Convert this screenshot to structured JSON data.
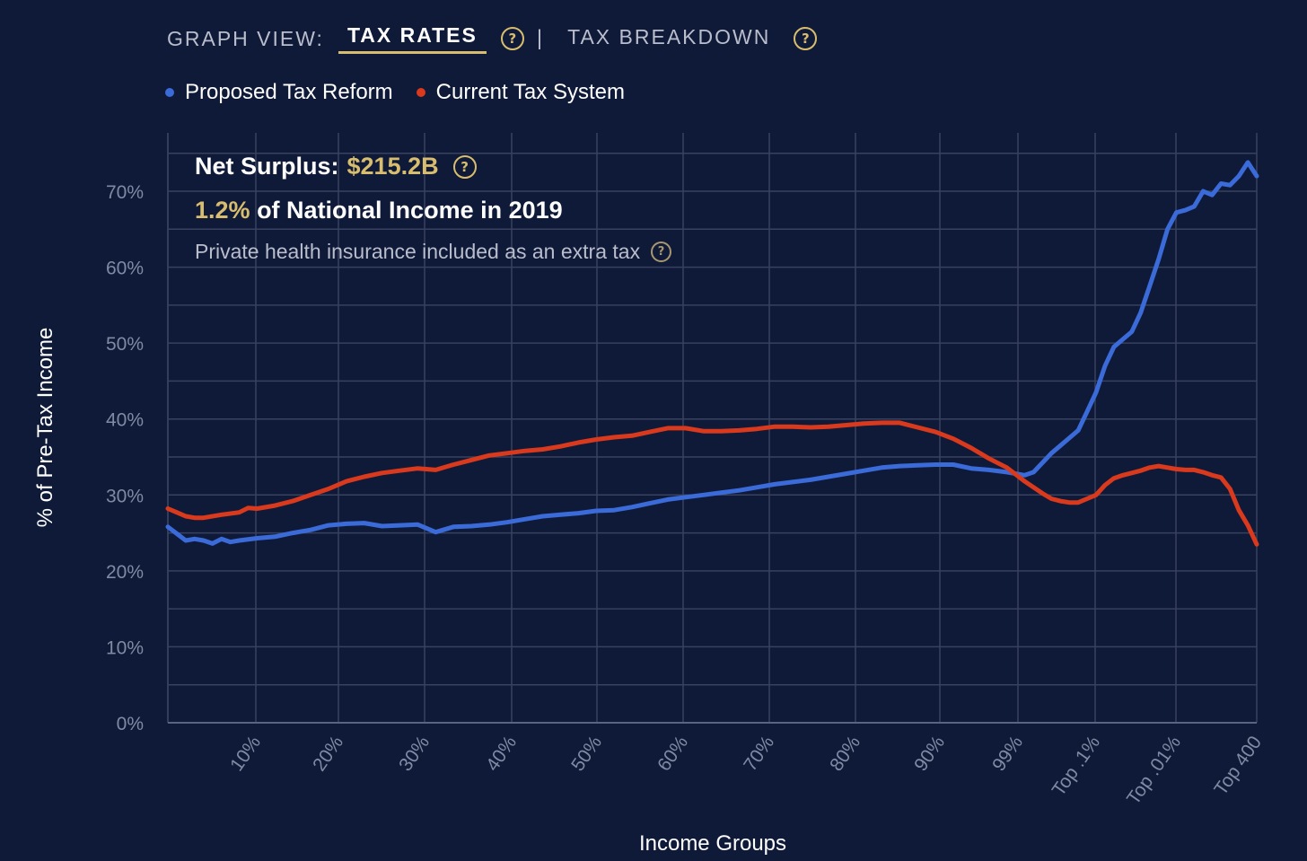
{
  "header": {
    "view_label": "GRAPH VIEW:",
    "tabs": [
      {
        "label": "TAX RATES",
        "active": true
      },
      {
        "label": "TAX BREAKDOWN",
        "active": false
      }
    ],
    "separator": "|",
    "help_glyph": "?"
  },
  "annotation": {
    "surplus_label": "Net Surplus:",
    "surplus_value": "$215.2B",
    "share_value": "1.2%",
    "share_text": "of National Income in 2019",
    "note": "Private health insurance included as an extra tax"
  },
  "icons": {
    "help": "question-circle-icon",
    "legend_marker": "dot-icon"
  },
  "colors": {
    "background": "#0f1a38",
    "grid": "#38425f",
    "accent_gold": "#d9bd6e",
    "proposed": "#3a6bd8",
    "current": "#d9391c"
  },
  "chart_data": {
    "type": "line",
    "title": "",
    "xlabel": "Income Groups",
    "ylabel": "% of Pre-Tax Income",
    "ylim": [
      0,
      75
    ],
    "y_ticks": [
      0,
      10,
      20,
      30,
      40,
      50,
      60,
      70
    ],
    "y_tick_format": "{}%",
    "x_tick_labels": [
      "10%",
      "20%",
      "30%",
      "40%",
      "50%",
      "60%",
      "70%",
      "80%",
      "90%",
      "99%",
      "Top .1%",
      "Top .01%",
      "Top 400"
    ],
    "grid": true,
    "legend": "top-left",
    "series": [
      {
        "name": "Proposed Tax Reform",
        "color": "#3a6bd8",
        "points": [
          [
            0,
            25.8
          ],
          [
            1,
            24.9
          ],
          [
            2,
            24.0
          ],
          [
            3,
            24.2
          ],
          [
            4,
            24.0
          ],
          [
            5,
            23.6
          ],
          [
            6,
            24.2
          ],
          [
            7,
            23.8
          ],
          [
            8,
            24.0
          ],
          [
            10,
            24.3
          ],
          [
            12,
            24.5
          ],
          [
            14,
            25.0
          ],
          [
            16,
            25.4
          ],
          [
            18,
            26.0
          ],
          [
            20,
            26.2
          ],
          [
            22,
            26.3
          ],
          [
            24,
            25.9
          ],
          [
            26,
            26.0
          ],
          [
            28,
            26.1
          ],
          [
            30,
            25.1
          ],
          [
            32,
            25.8
          ],
          [
            34,
            25.9
          ],
          [
            36,
            26.1
          ],
          [
            38,
            26.4
          ],
          [
            40,
            26.8
          ],
          [
            42,
            27.2
          ],
          [
            44,
            27.4
          ],
          [
            46,
            27.6
          ],
          [
            48,
            27.9
          ],
          [
            50,
            28.0
          ],
          [
            52,
            28.4
          ],
          [
            54,
            28.9
          ],
          [
            56,
            29.4
          ],
          [
            58,
            29.7
          ],
          [
            60,
            30.0
          ],
          [
            62,
            30.3
          ],
          [
            64,
            30.6
          ],
          [
            66,
            31.0
          ],
          [
            68,
            31.4
          ],
          [
            70,
            31.7
          ],
          [
            72,
            32.0
          ],
          [
            74,
            32.4
          ],
          [
            76,
            32.8
          ],
          [
            78,
            33.2
          ],
          [
            80,
            33.6
          ],
          [
            82,
            33.8
          ],
          [
            84,
            33.9
          ],
          [
            86,
            34.0
          ],
          [
            88,
            34.0
          ],
          [
            90,
            33.5
          ],
          [
            92,
            33.3
          ],
          [
            94,
            33.0
          ],
          [
            96,
            32.6
          ],
          [
            97,
            33.0
          ],
          [
            99,
            35.5
          ],
          [
            100,
            36.5
          ],
          [
            101,
            37.5
          ],
          [
            102,
            38.5
          ],
          [
            103,
            41.0
          ],
          [
            104,
            43.5
          ],
          [
            105,
            47.0
          ],
          [
            106,
            49.5
          ],
          [
            107,
            50.5
          ],
          [
            108,
            51.5
          ],
          [
            109,
            54.0
          ],
          [
            110,
            57.5
          ],
          [
            111,
            61.0
          ],
          [
            112,
            65.0
          ],
          [
            113,
            67.2
          ],
          [
            114,
            67.5
          ],
          [
            115,
            68.0
          ],
          [
            116,
            70.0
          ],
          [
            117,
            69.5
          ],
          [
            118,
            71.0
          ],
          [
            119,
            70.8
          ],
          [
            120,
            72.0
          ],
          [
            121,
            73.8
          ],
          [
            122,
            72.0
          ]
        ]
      },
      {
        "name": "Current Tax System",
        "color": "#d9391c",
        "points": [
          [
            0,
            28.2
          ],
          [
            1,
            27.7
          ],
          [
            2,
            27.2
          ],
          [
            3,
            27.0
          ],
          [
            4,
            27.0
          ],
          [
            6,
            27.4
          ],
          [
            8,
            27.7
          ],
          [
            9,
            28.3
          ],
          [
            10,
            28.2
          ],
          [
            12,
            28.6
          ],
          [
            14,
            29.2
          ],
          [
            16,
            30.0
          ],
          [
            18,
            30.8
          ],
          [
            20,
            31.8
          ],
          [
            22,
            32.4
          ],
          [
            24,
            32.9
          ],
          [
            26,
            33.2
          ],
          [
            28,
            33.5
          ],
          [
            30,
            33.3
          ],
          [
            32,
            34.0
          ],
          [
            34,
            34.6
          ],
          [
            36,
            35.2
          ],
          [
            38,
            35.5
          ],
          [
            40,
            35.8
          ],
          [
            42,
            36.0
          ],
          [
            44,
            36.4
          ],
          [
            46,
            36.9
          ],
          [
            48,
            37.3
          ],
          [
            50,
            37.6
          ],
          [
            52,
            37.8
          ],
          [
            54,
            38.3
          ],
          [
            56,
            38.8
          ],
          [
            58,
            38.8
          ],
          [
            60,
            38.4
          ],
          [
            62,
            38.4
          ],
          [
            64,
            38.5
          ],
          [
            66,
            38.7
          ],
          [
            68,
            39.0
          ],
          [
            70,
            39.0
          ],
          [
            72,
            38.9
          ],
          [
            74,
            39.0
          ],
          [
            76,
            39.2
          ],
          [
            78,
            39.4
          ],
          [
            80,
            39.5
          ],
          [
            82,
            39.5
          ],
          [
            84,
            38.9
          ],
          [
            86,
            38.3
          ],
          [
            88,
            37.4
          ],
          [
            90,
            36.2
          ],
          [
            92,
            34.8
          ],
          [
            94,
            33.6
          ],
          [
            96,
            31.8
          ],
          [
            98,
            30.2
          ],
          [
            99,
            29.5
          ],
          [
            100,
            29.2
          ],
          [
            101,
            29.0
          ],
          [
            102,
            29.0
          ],
          [
            103,
            29.5
          ],
          [
            104,
            30.0
          ],
          [
            105,
            31.3
          ],
          [
            106,
            32.2
          ],
          [
            107,
            32.6
          ],
          [
            108,
            32.9
          ],
          [
            109,
            33.2
          ],
          [
            110,
            33.6
          ],
          [
            111,
            33.8
          ],
          [
            112,
            33.6
          ],
          [
            113,
            33.4
          ],
          [
            114,
            33.3
          ],
          [
            115,
            33.3
          ],
          [
            116,
            33.0
          ],
          [
            117,
            32.6
          ],
          [
            118,
            32.3
          ],
          [
            119,
            30.8
          ],
          [
            120,
            28.0
          ],
          [
            121,
            26.0
          ],
          [
            122,
            23.5
          ]
        ]
      }
    ]
  }
}
